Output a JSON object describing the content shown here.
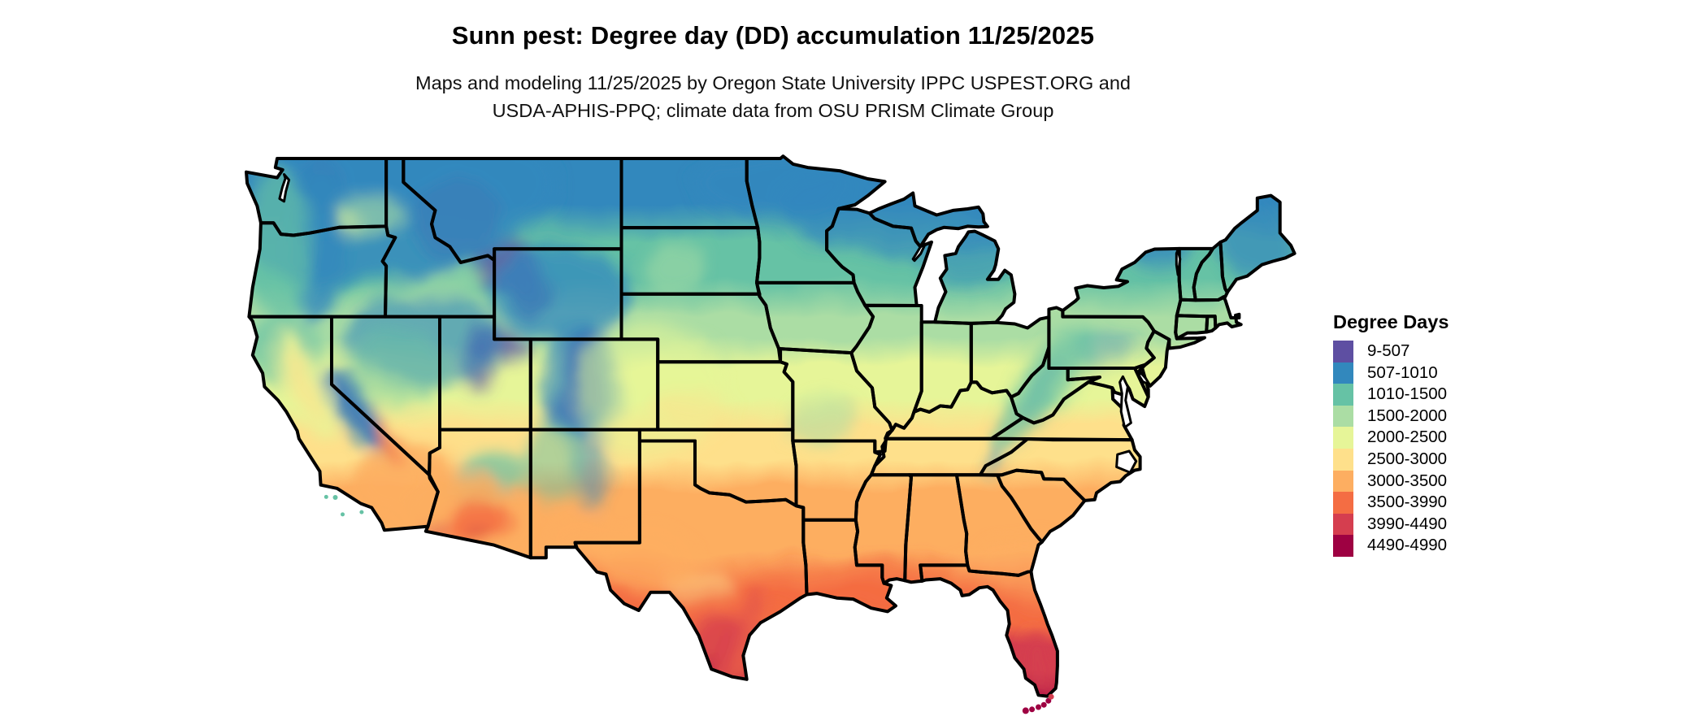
{
  "header": {
    "title": "Sunn pest: Degree day (DD) accumulation 11/25/2025",
    "subtitle_line1": "Maps and modeling 11/25/2025 by Oregon State University IPPC USPEST.ORG and",
    "subtitle_line2": "USDA-APHIS-PPQ; climate data from OSU PRISM Climate Group"
  },
  "map": {
    "type": "choropleth raster map",
    "region": "Contiguous United States with state boundaries",
    "border_color": "#000000",
    "water_color": "#ffffff",
    "background_color": "#ffffff"
  },
  "legend": {
    "title": "Degree Days",
    "items": [
      {
        "label": "9-507",
        "color": "#5e4fa2"
      },
      {
        "label": "507-1010",
        "color": "#3288bd"
      },
      {
        "label": "1010-1500",
        "color": "#66c2a5"
      },
      {
        "label": "1500-2000",
        "color": "#abdda4"
      },
      {
        "label": "2000-2500",
        "color": "#e6f598"
      },
      {
        "label": "2500-3000",
        "color": "#fee08b"
      },
      {
        "label": "3000-3500",
        "color": "#fdae61"
      },
      {
        "label": "3500-3990",
        "color": "#f46d43"
      },
      {
        "label": "3990-4490",
        "color": "#d53e4f"
      },
      {
        "label": "4490-4990",
        "color": "#9e0142"
      }
    ]
  }
}
